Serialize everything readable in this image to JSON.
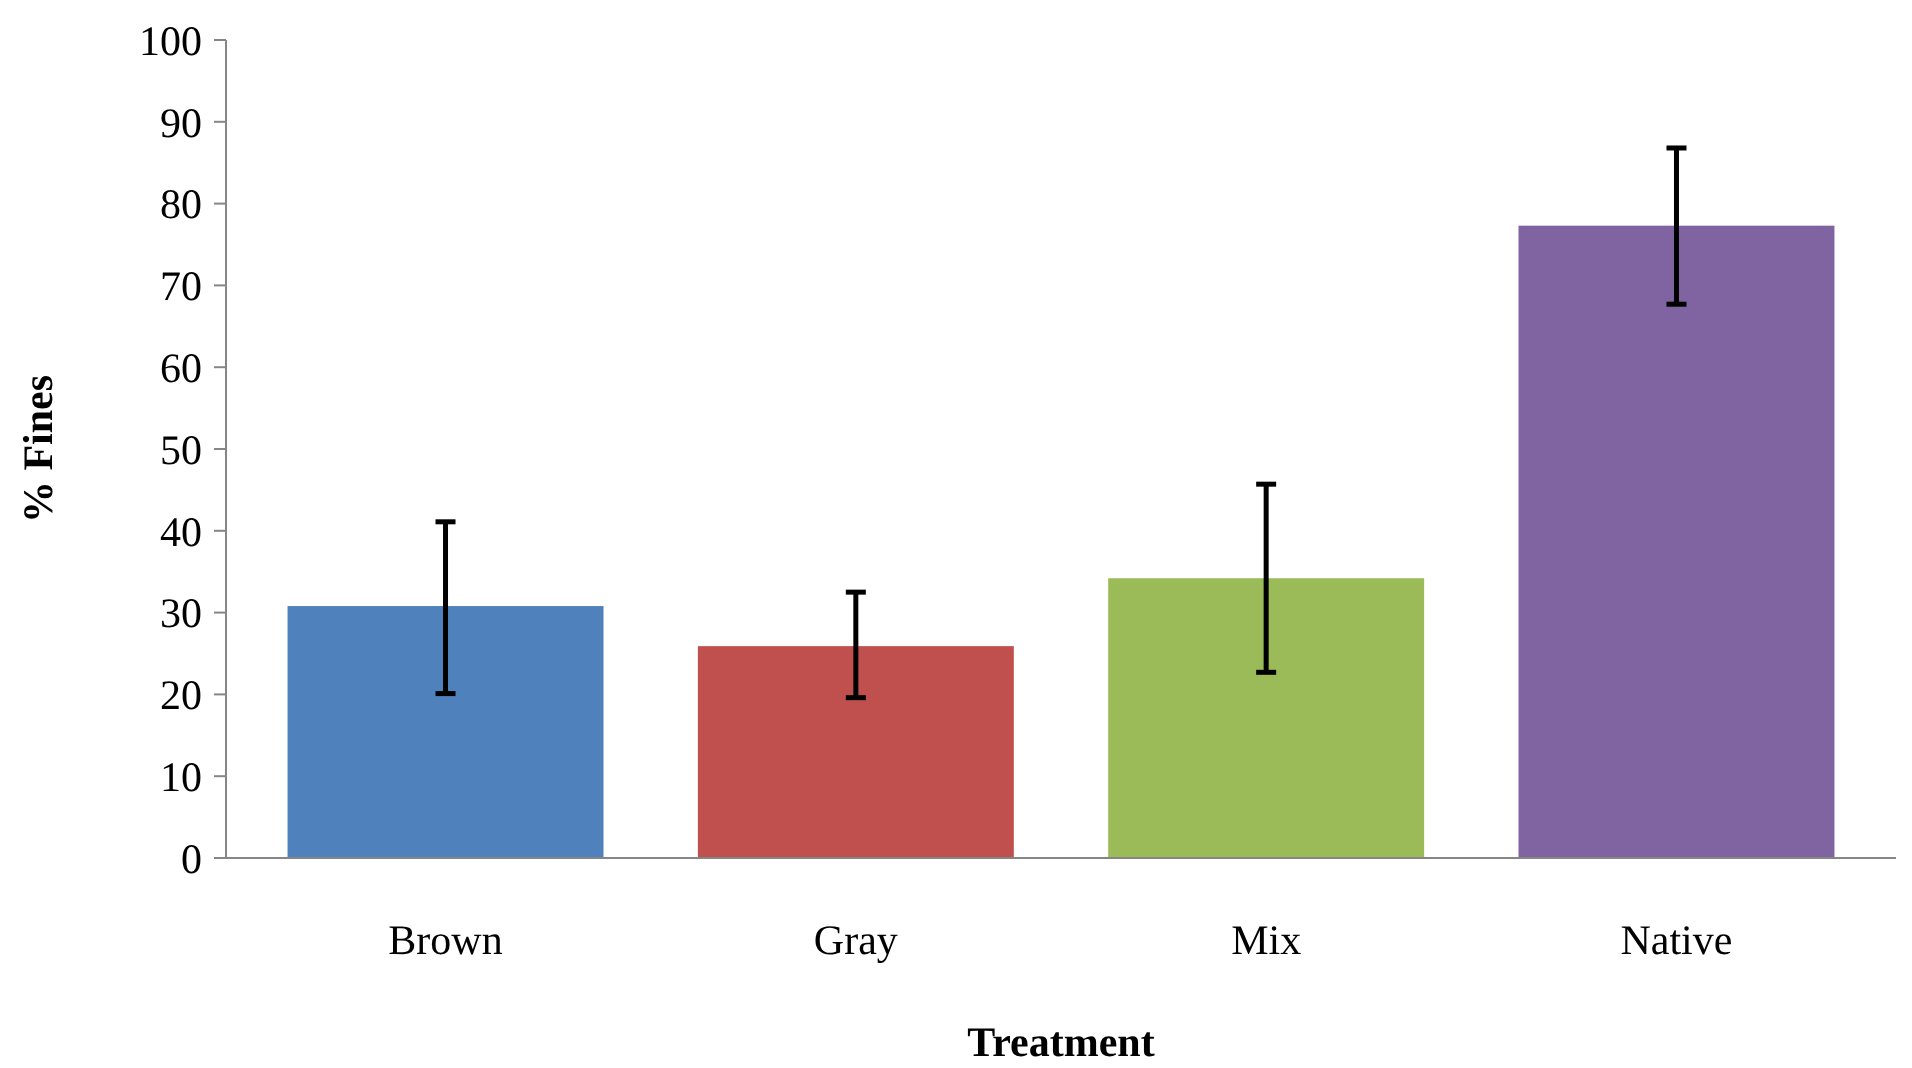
{
  "chart_data": {
    "type": "bar",
    "xlabel": "Treatment",
    "ylabel": "% Fines",
    "categories": [
      "Brown",
      "Gray",
      "Mix",
      "Native"
    ],
    "values": [
      30.8,
      25.9,
      34.2,
      77.3
    ],
    "colors": [
      "#4f81bd",
      "#c0504d",
      "#9bbb59",
      "#8064a2"
    ],
    "errors": [
      [
        20.1,
        41.1
      ],
      [
        19.6,
        32.5
      ],
      [
        22.7,
        45.7
      ],
      [
        67.7,
        86.8
      ]
    ],
    "ylim": [
      0,
      100
    ],
    "yticks": [
      0,
      10,
      20,
      30,
      40,
      50,
      60,
      70,
      80,
      90,
      100
    ],
    "grid": false
  }
}
